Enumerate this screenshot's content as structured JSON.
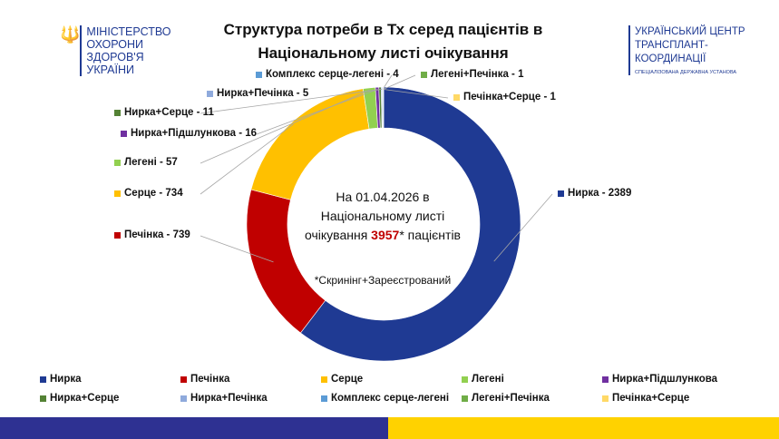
{
  "logos": {
    "left": "МІНІСТЕРСТВО ОХОРОНИ ЗДОРОВ'Я УКРАЇНИ",
    "right_lines": [
      "УКРАЇНСЬКИЙ ЦЕНТР",
      "ТРАНСПЛАНТ-",
      "КООРДИНАЦІЇ"
    ],
    "right_sub": "СПЕЦІАЛІЗОВАНА ДЕРЖАВНА УСТАНОВА"
  },
  "center": {
    "line1": "На 01.04.2026 в",
    "line2": "Національному листі",
    "line3_pre": "очікування ",
    "total": "3957",
    "line3_post": "* пацієнтів",
    "note": "*Скринінг+Зареєстрований"
  },
  "chart_data": {
    "type": "pie",
    "donut": true,
    "title": "Структура потреби в Тх серед пацієнтів в Національному листі очікування",
    "legend_position": "bottom",
    "categories": [
      "Нирка",
      "Печінка",
      "Серце",
      "Легені",
      "Нирка+Підшлункова",
      "Нирка+Серце",
      "Нирка+Печінка",
      "Комплекс серце-легені",
      "Легені+Печінка",
      "Печінка+Серце"
    ],
    "values": [
      2389,
      739,
      734,
      57,
      16,
      11,
      5,
      4,
      1,
      1
    ],
    "colors": [
      "#1f3a93",
      "#c00000",
      "#ffc000",
      "#92d050",
      "#7030a0",
      "#548235",
      "#8faadc",
      "#5b9bd5",
      "#70ad47",
      "#ffd966"
    ],
    "data_labels": [
      "Нирка - 2389",
      "Печінка - 739",
      "Серце - 734",
      "Легені - 57",
      "Нирка+Підшлункова - 16",
      "Нирка+Серце - 11",
      "Нирка+Печінка - 5",
      "Комплекс серце-легені - 4",
      "Легені+Печінка - 1",
      "Печінка+Серце - 1"
    ]
  }
}
